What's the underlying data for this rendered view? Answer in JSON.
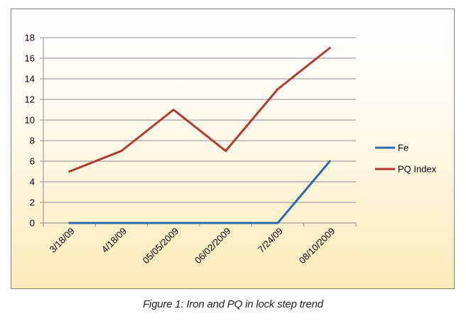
{
  "caption": "Figure 1: Iron and PQ in lock step trend",
  "chart_data": {
    "type": "line",
    "categories": [
      "3/18/09",
      "4/18/09",
      "05/05/2009",
      "06/02/2009",
      "7/24/09",
      "08/10/2009"
    ],
    "series": [
      {
        "name": "Fe",
        "values": [
          0,
          0,
          0,
          0,
          0,
          6
        ],
        "color": "#2e6aa8"
      },
      {
        "name": "PQ Index",
        "values": [
          5,
          7,
          11,
          7,
          13,
          17
        ],
        "color": "#b03a36"
      }
    ],
    "title": "",
    "xlabel": "",
    "ylabel": "",
    "ylim": [
      0,
      18
    ],
    "yticks": [
      0,
      2,
      4,
      6,
      8,
      10,
      12,
      14,
      16,
      18
    ],
    "grid": true,
    "legend_placement": "right"
  }
}
